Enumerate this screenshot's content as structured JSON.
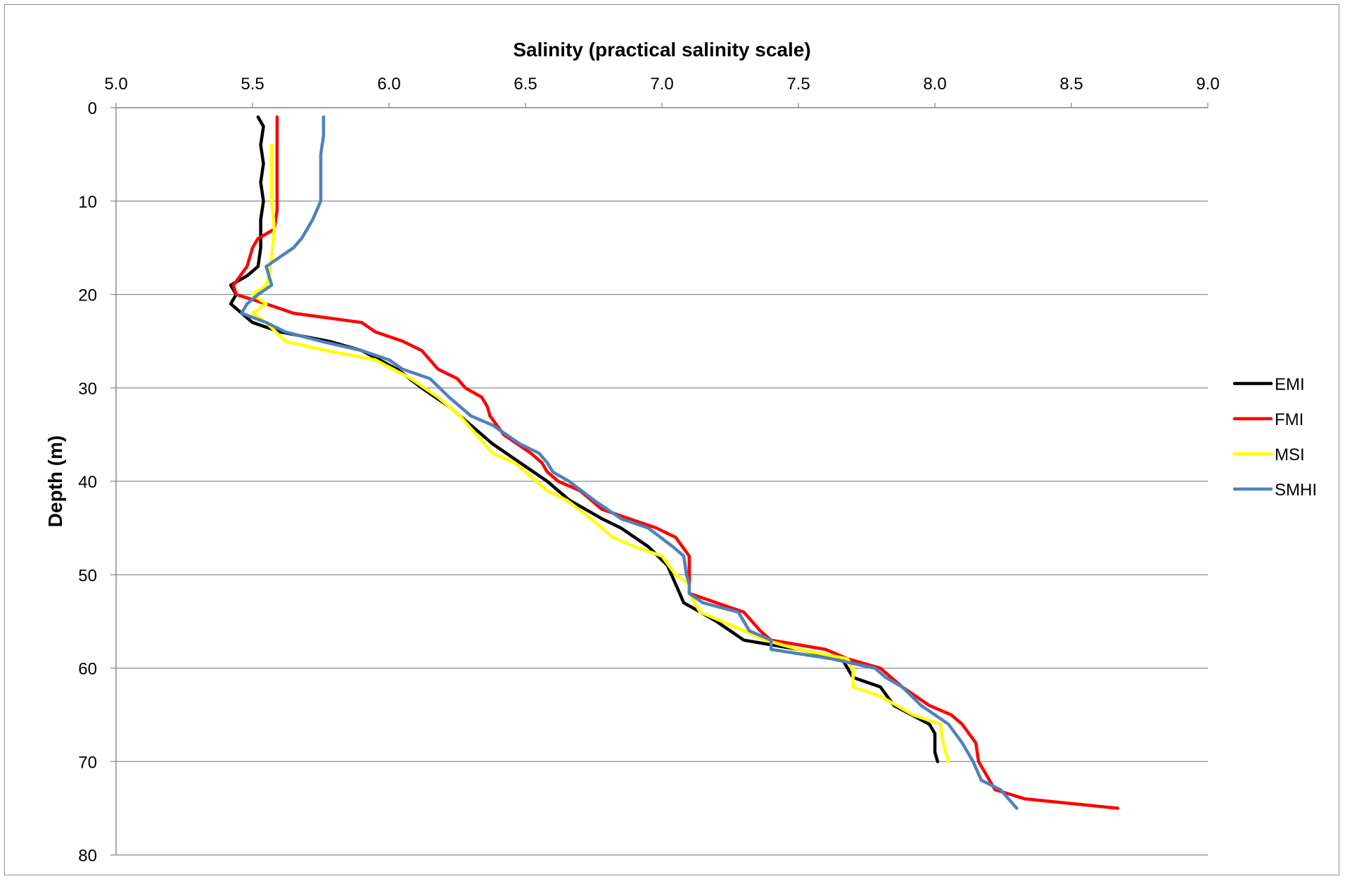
{
  "chart_data": {
    "type": "line",
    "title": "",
    "xlabel": "Salinity (practical salinity scale)",
    "ylabel": "Depth (m)",
    "xlim": [
      5.0,
      9.0
    ],
    "ylim": [
      0,
      80
    ],
    "y_inverted": true,
    "x_axis_position": "top",
    "x_ticks": [
      "5.0",
      "5.5",
      "6.0",
      "6.5",
      "7.0",
      "7.5",
      "8.0",
      "8.5",
      "9.0"
    ],
    "y_ticks": [
      "0",
      "10",
      "20",
      "30",
      "40",
      "50",
      "60",
      "70",
      "80"
    ],
    "grid": "horizontal",
    "legend_position": "right",
    "series": [
      {
        "name": "EMI",
        "color": "#000000",
        "points": [
          [
            5.52,
            1
          ],
          [
            5.54,
            2
          ],
          [
            5.53,
            4
          ],
          [
            5.54,
            6
          ],
          [
            5.53,
            8
          ],
          [
            5.54,
            10
          ],
          [
            5.53,
            12
          ],
          [
            5.53,
            15
          ],
          [
            5.52,
            17
          ],
          [
            5.48,
            18
          ],
          [
            5.42,
            19
          ],
          [
            5.44,
            20
          ],
          [
            5.42,
            21
          ],
          [
            5.5,
            23
          ],
          [
            5.6,
            24
          ],
          [
            5.78,
            25
          ],
          [
            5.9,
            26
          ],
          [
            6.03,
            28
          ],
          [
            6.12,
            30
          ],
          [
            6.22,
            32
          ],
          [
            6.3,
            34
          ],
          [
            6.38,
            36
          ],
          [
            6.48,
            38
          ],
          [
            6.58,
            40
          ],
          [
            6.66,
            42
          ],
          [
            6.78,
            44
          ],
          [
            6.85,
            45
          ],
          [
            6.95,
            47
          ],
          [
            7.02,
            49
          ],
          [
            7.05,
            51
          ],
          [
            7.08,
            53
          ],
          [
            7.2,
            55
          ],
          [
            7.3,
            57
          ],
          [
            7.5,
            58
          ],
          [
            7.66,
            59
          ],
          [
            7.68,
            60
          ],
          [
            7.7,
            61
          ],
          [
            7.8,
            62
          ],
          [
            7.85,
            64
          ],
          [
            7.98,
            66
          ],
          [
            8.0,
            67
          ],
          [
            8.0,
            69
          ],
          [
            8.01,
            70
          ]
        ]
      },
      {
        "name": "FMI",
        "color": "#ff0000",
        "points": [
          [
            5.59,
            1
          ],
          [
            5.59,
            5
          ],
          [
            5.59,
            8
          ],
          [
            5.59,
            11
          ],
          [
            5.58,
            13
          ],
          [
            5.52,
            14
          ],
          [
            5.5,
            15
          ],
          [
            5.48,
            17
          ],
          [
            5.43,
            19
          ],
          [
            5.44,
            20
          ],
          [
            5.55,
            21
          ],
          [
            5.65,
            22
          ],
          [
            5.9,
            23
          ],
          [
            5.95,
            24
          ],
          [
            6.05,
            25
          ],
          [
            6.12,
            26
          ],
          [
            6.18,
            28
          ],
          [
            6.25,
            29
          ],
          [
            6.28,
            30
          ],
          [
            6.34,
            31
          ],
          [
            6.36,
            32
          ],
          [
            6.37,
            33
          ],
          [
            6.42,
            35
          ],
          [
            6.52,
            37
          ],
          [
            6.56,
            38
          ],
          [
            6.58,
            39
          ],
          [
            6.62,
            40
          ],
          [
            6.7,
            41
          ],
          [
            6.78,
            43
          ],
          [
            6.88,
            44
          ],
          [
            6.98,
            45
          ],
          [
            7.05,
            46
          ],
          [
            7.1,
            48
          ],
          [
            7.1,
            50
          ],
          [
            7.1,
            52
          ],
          [
            7.2,
            53
          ],
          [
            7.3,
            54
          ],
          [
            7.36,
            56
          ],
          [
            7.4,
            57
          ],
          [
            7.6,
            58
          ],
          [
            7.68,
            59
          ],
          [
            7.8,
            60
          ],
          [
            7.88,
            62
          ],
          [
            7.98,
            64
          ],
          [
            8.06,
            65
          ],
          [
            8.1,
            66
          ],
          [
            8.15,
            68
          ],
          [
            8.16,
            70
          ],
          [
            8.2,
            72
          ],
          [
            8.22,
            73
          ],
          [
            8.33,
            74
          ],
          [
            8.67,
            75
          ]
        ]
      },
      {
        "name": "MSI",
        "color": "#ffff00",
        "points": [
          [
            5.57,
            4
          ],
          [
            5.57,
            7
          ],
          [
            5.57,
            10
          ],
          [
            5.58,
            13
          ],
          [
            5.57,
            16
          ],
          [
            5.56,
            18
          ],
          [
            5.55,
            19
          ],
          [
            5.5,
            20
          ],
          [
            5.55,
            21
          ],
          [
            5.5,
            22
          ],
          [
            5.55,
            23
          ],
          [
            5.62,
            25
          ],
          [
            5.77,
            26
          ],
          [
            5.95,
            27
          ],
          [
            6.08,
            29
          ],
          [
            6.18,
            31
          ],
          [
            6.26,
            33
          ],
          [
            6.32,
            35
          ],
          [
            6.38,
            37
          ],
          [
            6.46,
            38
          ],
          [
            6.54,
            40
          ],
          [
            6.58,
            41
          ],
          [
            6.65,
            42
          ],
          [
            6.74,
            44
          ],
          [
            6.82,
            46
          ],
          [
            6.9,
            47
          ],
          [
            7.0,
            48
          ],
          [
            7.05,
            50
          ],
          [
            7.1,
            51
          ],
          [
            7.1,
            52
          ],
          [
            7.14,
            54
          ],
          [
            7.22,
            55
          ],
          [
            7.3,
            56
          ],
          [
            7.38,
            57
          ],
          [
            7.5,
            58
          ],
          [
            7.68,
            59
          ],
          [
            7.7,
            60
          ],
          [
            7.7,
            62
          ],
          [
            7.8,
            63
          ],
          [
            7.92,
            65
          ],
          [
            8.02,
            66
          ],
          [
            8.03,
            68
          ],
          [
            8.05,
            70
          ]
        ]
      },
      {
        "name": "SMHI",
        "color": "#4f81bd",
        "points": [
          [
            5.76,
            1
          ],
          [
            5.76,
            3
          ],
          [
            5.75,
            5
          ],
          [
            5.75,
            8
          ],
          [
            5.75,
            10
          ],
          [
            5.72,
            12
          ],
          [
            5.68,
            14
          ],
          [
            5.65,
            15
          ],
          [
            5.6,
            16
          ],
          [
            5.55,
            17
          ],
          [
            5.57,
            19
          ],
          [
            5.52,
            20
          ],
          [
            5.48,
            21
          ],
          [
            5.46,
            22
          ],
          [
            5.55,
            23
          ],
          [
            5.62,
            24
          ],
          [
            5.75,
            25
          ],
          [
            5.9,
            26
          ],
          [
            6.0,
            27
          ],
          [
            6.05,
            28
          ],
          [
            6.15,
            29
          ],
          [
            6.22,
            31
          ],
          [
            6.3,
            33
          ],
          [
            6.38,
            34
          ],
          [
            6.48,
            36
          ],
          [
            6.55,
            37
          ],
          [
            6.58,
            38
          ],
          [
            6.6,
            39
          ],
          [
            6.66,
            40
          ],
          [
            6.75,
            42
          ],
          [
            6.85,
            44
          ],
          [
            6.95,
            45
          ],
          [
            7.04,
            47
          ],
          [
            7.08,
            48
          ],
          [
            7.09,
            50
          ],
          [
            7.1,
            51
          ],
          [
            7.1,
            52
          ],
          [
            7.15,
            53
          ],
          [
            7.28,
            54
          ],
          [
            7.32,
            56
          ],
          [
            7.4,
            57
          ],
          [
            7.4,
            58
          ],
          [
            7.62,
            59
          ],
          [
            7.78,
            60
          ],
          [
            7.82,
            61
          ],
          [
            7.88,
            62
          ],
          [
            7.95,
            64
          ],
          [
            8.05,
            66
          ],
          [
            8.1,
            68
          ],
          [
            8.14,
            70
          ],
          [
            8.17,
            72
          ],
          [
            8.24,
            73
          ],
          [
            8.3,
            75
          ]
        ]
      }
    ]
  }
}
